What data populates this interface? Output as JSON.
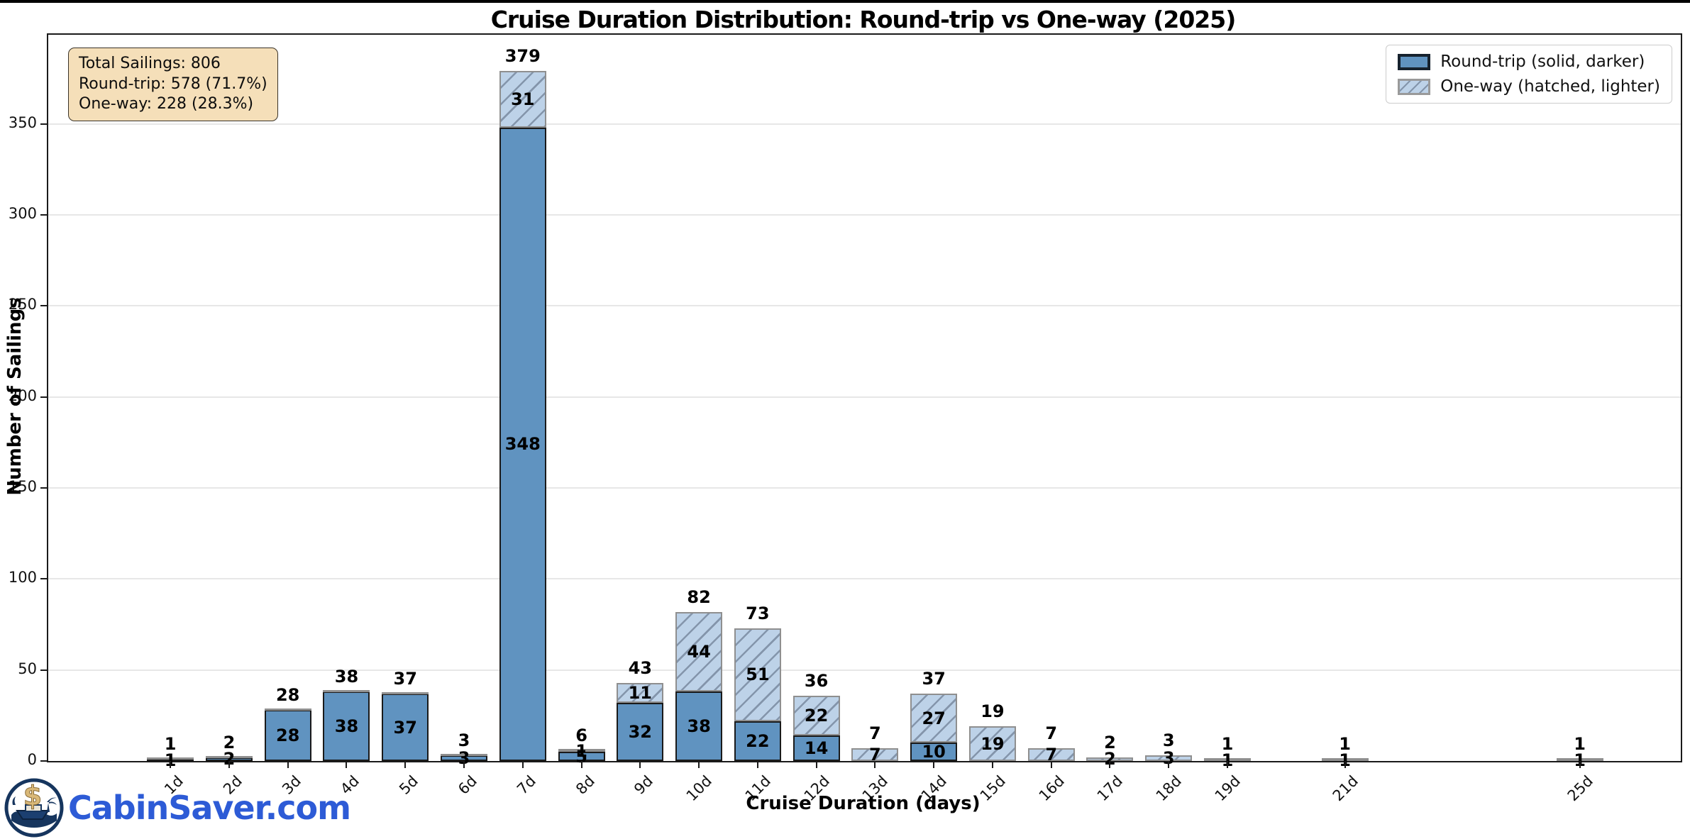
{
  "chart_data": {
    "type": "bar",
    "stacked": true,
    "title": "Cruise Duration Distribution: Round-trip vs One-way (2025)",
    "xlabel": "Cruise Duration (days)",
    "ylabel": "Number of Sailings",
    "categories": [
      "1d",
      "2d",
      "3d",
      "4d",
      "5d",
      "6d",
      "7d",
      "8d",
      "9d",
      "10d",
      "11d",
      "12d",
      "13d",
      "14d",
      "15d",
      "16d",
      "17d",
      "18d",
      "19d",
      "21d",
      "25d"
    ],
    "days": [
      1,
      2,
      3,
      4,
      5,
      6,
      7,
      8,
      9,
      10,
      11,
      12,
      13,
      14,
      15,
      16,
      17,
      18,
      19,
      21,
      25
    ],
    "series": [
      {
        "name": "Round-trip",
        "legend_label": "Round-trip (solid, darker)",
        "style": "solid",
        "color": "#6093c0",
        "edge_color": "#1a1a1a",
        "values": [
          1,
          2,
          28,
          38,
          37,
          3,
          348,
          5,
          32,
          38,
          22,
          14,
          0,
          10,
          0,
          0,
          0,
          0,
          0,
          0,
          0
        ]
      },
      {
        "name": "One-way",
        "legend_label": "One-way (hatched, lighter)",
        "style": "hatched",
        "color": "#bdd2e8",
        "edge_color": "#8f8f8f",
        "values": [
          0,
          0,
          0,
          0,
          0,
          0,
          31,
          1,
          11,
          44,
          51,
          22,
          7,
          27,
          19,
          7,
          2,
          3,
          1,
          1,
          1
        ]
      }
    ],
    "totals": [
      1,
      2,
      28,
      38,
      37,
      3,
      379,
      6,
      43,
      82,
      73,
      36,
      7,
      37,
      19,
      7,
      2,
      3,
      1,
      1,
      1
    ],
    "yticks": [
      0,
      50,
      100,
      150,
      200,
      250,
      300,
      350
    ],
    "ylim": [
      0,
      399
    ],
    "xlim": [
      -1.08,
      26.72
    ],
    "grid": "horizontal-only",
    "legend_position": "upper-right",
    "annotation": {
      "lines": [
        "Total Sailings: 806",
        "Round-trip: 578 (71.7%)",
        "One-way: 228 (28.3%)"
      ],
      "bg_color": "#f5dfb9"
    }
  },
  "branding": {
    "logo_text": "CabinSaver.com",
    "logo_icon": "cruise-ship-dollar-badge-icon",
    "logo_color": "#2d5bd6",
    "logo_navy": "#16355e",
    "logo_tan": "#d9b878"
  }
}
